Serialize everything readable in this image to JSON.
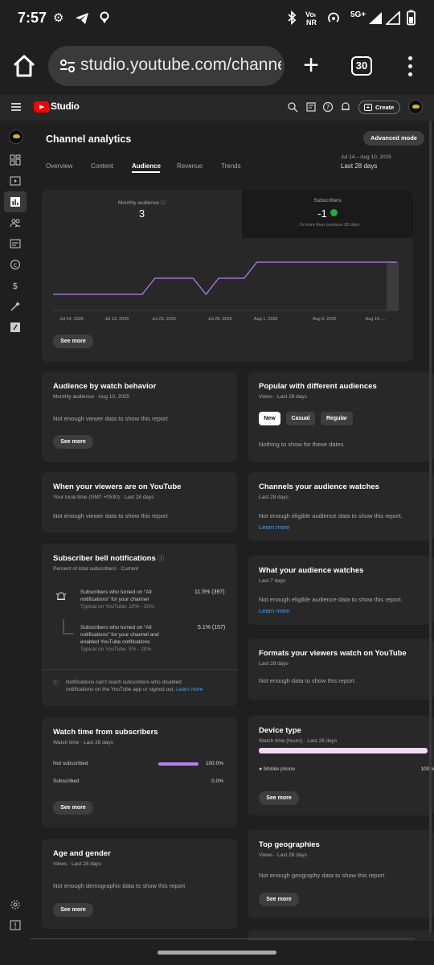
{
  "status_bar": {
    "time": "7:57",
    "volte": "Voₗ",
    "volte_sub": "NR",
    "network": "5G+"
  },
  "browser": {
    "url": "studio.youtube.com/channel",
    "tab_count": "30"
  },
  "studio": {
    "logo_text": "Studio",
    "create_label": "Create"
  },
  "page": {
    "title": "Channel analytics",
    "advanced_mode": "Advanced mode",
    "tabs": [
      "Overview",
      "Content",
      "Audience",
      "Revenue",
      "Trends"
    ],
    "active_tab": "Audience",
    "date_range": "Jul 14 – Aug 10, 2025",
    "date_label": "Last 28 days"
  },
  "overview": {
    "monthly_label": "Monthly audience",
    "monthly_value": "3",
    "subs_label": "Subscribers",
    "subs_value": "-1",
    "subs_note": "…% more than previous 28 days",
    "see_more": "See more",
    "chart_data": {
      "type": "line",
      "x": [
        "Jul 14, 2025",
        "Jul 19, 2025",
        "Jul 23, 2025",
        "Jul 28, 2025",
        "Aug 1, 2025",
        "Aug 6, 2025",
        "Aug 10, ..."
      ],
      "x_tick_labels": [
        "Jul 14, 2025",
        "Jul 19, 2025",
        "Jul 23, 2025",
        "Jul 28, 2025",
        "Aug 1, 2025",
        "Aug 6, 2025",
        "Aug 10, ..."
      ],
      "y_tick_labels": [
        "3",
        "2",
        "1",
        "0"
      ],
      "ylim": [
        0,
        3
      ],
      "series": [
        {
          "points": [
            {
              "day": 0,
              "v": 1
            },
            {
              "day": 7,
              "v": 1
            },
            {
              "day": 8,
              "v": 2
            },
            {
              "day": 11,
              "v": 2
            },
            {
              "day": 12,
              "v": 1
            },
            {
              "day": 13,
              "v": 2
            },
            {
              "day": 15,
              "v": 2
            },
            {
              "day": 16,
              "v": 3
            },
            {
              "day": 27,
              "v": 3
            }
          ]
        }
      ]
    }
  },
  "cards": {
    "watch_behavior": {
      "title": "Audience by watch behavior",
      "sub": "Monthly audience · Aug 10, 2025",
      "msg": "Not enough viewer data to show this report",
      "button": "See more"
    },
    "popular": {
      "title": "Popular with different audiences",
      "sub": "Views · Last 28 days",
      "chips": [
        "New",
        "Casual",
        "Regular"
      ],
      "msg": "Nothing to show for these dates"
    },
    "when_viewers": {
      "title": "When your viewers are on YouTube",
      "sub": "Your local time (GMT +0530) · Last 28 days",
      "msg": "Not enough viewer data to show this report"
    },
    "channels_watch": {
      "title": "Channels your audience watches",
      "sub": "Last 28 days",
      "msg": "Not enough eligible audience data to show this report.",
      "link": "Learn more"
    },
    "bell": {
      "title": "Subscriber bell notifications",
      "sub": "Percent of total subscribers · Current",
      "row1_line1": "Subscribers who turned on “All",
      "row1_line2": "notifications” for your channel",
      "row1_typ": "Typical on YouTube: 10% - 30%",
      "row1_val": "11.5% (397)",
      "row2_line1": "Subscribers who turned on “All",
      "row2_line2": "notifications” for your channel and",
      "row2_line3": "enabled YouTube notifications",
      "row2_typ": "Typical on YouTube: 5% - 20%",
      "row2_val": "5.1% (157)",
      "note_line1": "Notifications can’t reach subscribers who disabled",
      "note_line2": "notifications on the YouTube app or signed out.",
      "note_link": "Learn more"
    },
    "what_watch": {
      "title": "What your audience watches",
      "sub": "Last 7 days",
      "msg": "Not enough eligible audience data to show this report.",
      "link": "Learn more"
    },
    "formats": {
      "title": "Formats your viewers watch on YouTube",
      "sub": "Last 28 days",
      "msg": "Not enough data to show this report."
    },
    "watch_subs": {
      "title": "Watch time from subscribers",
      "sub": "Watch time · Last 28 days",
      "rows": [
        {
          "label": "Not subscribed",
          "value": "100.0%",
          "fraction": 1.0
        },
        {
          "label": "Subscribed",
          "value": "0.0%",
          "fraction": 0.0
        }
      ],
      "button": "See more"
    },
    "device": {
      "title": "Device type",
      "sub": "Watch time (hours) · Last 28 days",
      "row_label": "Mobile phone",
      "row_value": "100%",
      "fraction": 1.0,
      "button": "See more"
    },
    "age_gender": {
      "title": "Age and gender",
      "sub": "Views · Last 28 days",
      "msg": "Not enough demographic data to show this report",
      "button": "See more"
    },
    "geo": {
      "title": "Top geographies",
      "sub": "Views · Last 28 days",
      "msg": "Not enough geography data to show this report",
      "button": "See more"
    }
  },
  "colors": {
    "line": "#b980f0",
    "accent_link": "#3ea6ff",
    "positive": "#2ba640",
    "brand_red": "#ff0000"
  },
  "icons": {
    "header": [
      "search-icon",
      "captions-icon",
      "help-icon",
      "notifications-icon",
      "create-icon"
    ],
    "rail": [
      "dashboard-icon",
      "content-icon",
      "analytics-icon",
      "community-icon",
      "subtitles-icon",
      "copyright-icon",
      "earn-icon",
      "customization-icon",
      "audio-library-icon",
      "settings-icon",
      "feedback-icon"
    ]
  }
}
